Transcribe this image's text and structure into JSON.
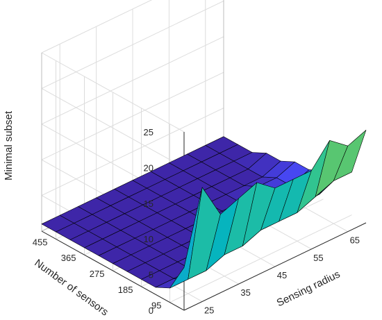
{
  "chart_data": {
    "type": "surface",
    "title": "",
    "xlabel": "Sensing radius",
    "ylabel": "Number of sensors",
    "zlabel": "Minimal subset",
    "x_ticks": [
      "25",
      "35",
      "45",
      "55",
      "65"
    ],
    "y_ticks": [
      "455",
      "365",
      "275",
      "185",
      "95"
    ],
    "z_ticks": [
      "0",
      "5",
      "10",
      "15",
      "20",
      "25"
    ],
    "xlim": [
      20,
      70
    ],
    "ylim": [
      50,
      500
    ],
    "zlim": [
      0,
      25
    ],
    "grid": true,
    "colormap": "parula",
    "x": [
      20,
      25,
      30,
      35,
      40,
      45,
      50,
      55,
      60,
      65,
      70
    ],
    "y": [
      500,
      455,
      410,
      365,
      320,
      275,
      230,
      185,
      140,
      95,
      50
    ],
    "z": [
      [
        1,
        1,
        1,
        1,
        1,
        1,
        1,
        1,
        1,
        1,
        1
      ],
      [
        1,
        1,
        1,
        1,
        1,
        1,
        1,
        1,
        1,
        1,
        1
      ],
      [
        1,
        1,
        1,
        1,
        1,
        1,
        1,
        1,
        1,
        1,
        1
      ],
      [
        1,
        1,
        1,
        1,
        1,
        1,
        1,
        1,
        1,
        1,
        2
      ],
      [
        1,
        1,
        1,
        1,
        1,
        1,
        1,
        1,
        1,
        1,
        2
      ],
      [
        1,
        1,
        1,
        1,
        1,
        1,
        1,
        1,
        2,
        2,
        3
      ],
      [
        1,
        1,
        1,
        1,
        1,
        1,
        1,
        2,
        2,
        2,
        3
      ],
      [
        1,
        1,
        1,
        1,
        1,
        1,
        1,
        2,
        2,
        3,
        4
      ],
      [
        1,
        1,
        1,
        2,
        2,
        2,
        2,
        3,
        3,
        3,
        5
      ],
      [
        2,
        2,
        2,
        3,
        3,
        4,
        4,
        4,
        5,
        6,
        6
      ],
      [
        6,
        16,
        11,
        12,
        13,
        11,
        11,
        11,
        14,
        12,
        13
      ]
    ]
  }
}
